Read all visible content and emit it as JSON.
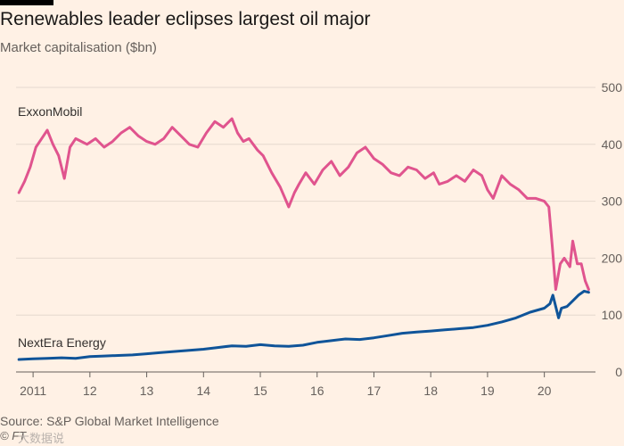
{
  "chart_data": {
    "type": "line",
    "title": "Renewables leader eclipses largest oil major",
    "subtitle": "Market capitalisation ($bn)",
    "source": "Source: S&P Global Market Intelligence",
    "credit": "© FT",
    "watermark": "大数据说",
    "xlabel": "",
    "ylabel": "",
    "x_ticks": [
      "2011",
      "12",
      "13",
      "14",
      "15",
      "16",
      "17",
      "18",
      "19",
      "20"
    ],
    "y_ticks": [
      0,
      100,
      200,
      300,
      400,
      500
    ],
    "ylim": [
      0,
      500
    ],
    "xlim": [
      2010.7,
      2020.9
    ],
    "grid": "horizontal",
    "series": [
      {
        "name": "ExxonMobil",
        "color": "#e0548e",
        "x": [
          2010.75,
          2010.85,
          2010.95,
          2011.05,
          2011.15,
          2011.25,
          2011.35,
          2011.45,
          2011.55,
          2011.65,
          2011.75,
          2011.85,
          2011.95,
          2012.1,
          2012.25,
          2012.4,
          2012.55,
          2012.7,
          2012.85,
          2013.0,
          2013.15,
          2013.3,
          2013.45,
          2013.6,
          2013.75,
          2013.9,
          2014.05,
          2014.2,
          2014.35,
          2014.5,
          2014.6,
          2014.7,
          2014.8,
          2014.95,
          2015.05,
          2015.2,
          2015.35,
          2015.5,
          2015.6,
          2015.68,
          2015.8,
          2015.95,
          2016.1,
          2016.25,
          2016.4,
          2016.55,
          2016.7,
          2016.85,
          2017.0,
          2017.15,
          2017.3,
          2017.45,
          2017.6,
          2017.75,
          2017.9,
          2018.05,
          2018.15,
          2018.3,
          2018.45,
          2018.6,
          2018.75,
          2018.9,
          2019.0,
          2019.1,
          2019.25,
          2019.4,
          2019.55,
          2019.7,
          2019.85,
          2020.0,
          2020.08,
          2020.14,
          2020.2,
          2020.28,
          2020.35,
          2020.45,
          2020.5,
          2020.58,
          2020.65,
          2020.72,
          2020.78
        ],
        "values": [
          315,
          335,
          360,
          395,
          410,
          425,
          400,
          380,
          340,
          395,
          410,
          405,
          400,
          410,
          395,
          405,
          420,
          430,
          415,
          405,
          400,
          410,
          430,
          415,
          400,
          395,
          420,
          440,
          430,
          445,
          420,
          405,
          410,
          390,
          380,
          350,
          325,
          290,
          315,
          330,
          350,
          330,
          355,
          370,
          345,
          360,
          385,
          395,
          375,
          365,
          350,
          345,
          360,
          355,
          340,
          350,
          330,
          335,
          345,
          335,
          355,
          345,
          320,
          305,
          345,
          330,
          320,
          305,
          305,
          300,
          290,
          220,
          145,
          190,
          200,
          185,
          230,
          190,
          190,
          160,
          145
        ]
      },
      {
        "name": "NextEra Energy",
        "color": "#0f5499",
        "x": [
          2010.75,
          2011.0,
          2011.25,
          2011.5,
          2011.75,
          2012.0,
          2012.25,
          2012.5,
          2012.75,
          2013.0,
          2013.25,
          2013.5,
          2013.75,
          2014.0,
          2014.25,
          2014.5,
          2014.75,
          2015.0,
          2015.25,
          2015.5,
          2015.75,
          2016.0,
          2016.25,
          2016.5,
          2016.75,
          2017.0,
          2017.25,
          2017.5,
          2017.75,
          2018.0,
          2018.25,
          2018.5,
          2018.75,
          2019.0,
          2019.25,
          2019.5,
          2019.75,
          2020.0,
          2020.1,
          2020.15,
          2020.2,
          2020.25,
          2020.3,
          2020.4,
          2020.5,
          2020.6,
          2020.7,
          2020.78
        ],
        "values": [
          22,
          23,
          24,
          25,
          24,
          27,
          28,
          29,
          30,
          32,
          34,
          36,
          38,
          40,
          43,
          46,
          45,
          48,
          46,
          45,
          47,
          52,
          55,
          58,
          57,
          60,
          64,
          68,
          70,
          72,
          74,
          76,
          78,
          82,
          88,
          95,
          105,
          112,
          120,
          135,
          115,
          95,
          112,
          115,
          125,
          135,
          142,
          140
        ]
      }
    ]
  }
}
